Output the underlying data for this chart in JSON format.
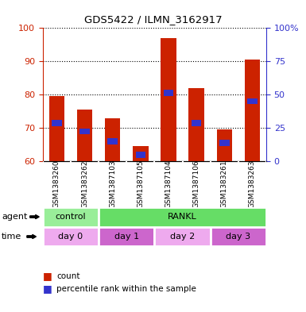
{
  "title": "GDS5422 / ILMN_3162917",
  "samples": [
    "GSM1383260",
    "GSM1383262",
    "GSM1387103",
    "GSM1387105",
    "GSM1387104",
    "GSM1387106",
    "GSM1383261",
    "GSM1383263"
  ],
  "count_values": [
    79.5,
    75.5,
    73.0,
    64.5,
    97.0,
    82.0,
    69.5,
    90.5
  ],
  "percentile_values": [
    71.5,
    69.0,
    66.0,
    62.0,
    80.5,
    71.5,
    65.5,
    78.0
  ],
  "ylim": [
    60,
    100
  ],
  "yticks_left": [
    60,
    70,
    80,
    90,
    100
  ],
  "yticks_right": [
    0,
    25,
    50,
    75,
    100
  ],
  "bar_color": "#CC2200",
  "percentile_color": "#3333CC",
  "agent_labels": [
    {
      "label": "control",
      "span": [
        0,
        2
      ],
      "color": "#99EE99"
    },
    {
      "label": "RANKL",
      "span": [
        2,
        8
      ],
      "color": "#66DD66"
    }
  ],
  "time_labels": [
    {
      "label": "day 0",
      "span": [
        0,
        2
      ],
      "color": "#EEAAEE"
    },
    {
      "label": "day 1",
      "span": [
        2,
        4
      ],
      "color": "#CC66CC"
    },
    {
      "label": "day 2",
      "span": [
        4,
        6
      ],
      "color": "#EEAAEE"
    },
    {
      "label": "day 3",
      "span": [
        6,
        8
      ],
      "color": "#CC66CC"
    }
  ],
  "bar_width": 0.55,
  "grid_color": "black",
  "plot_bg_color": "#FFFFFF",
  "tick_color_left": "#CC2200",
  "tick_color_right": "#3333CC",
  "xlabel_area_bg": "#CCCCCC"
}
